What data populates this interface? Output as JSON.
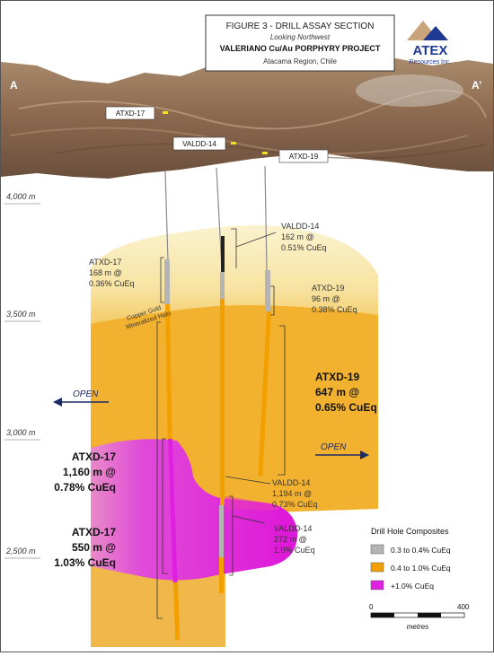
{
  "header": {
    "figure_title": "FIGURE 3 - DRILL ASSAY SECTION",
    "view": "Looking Northwest",
    "project": "VALERIANO Cu/Au PORPHYRY PROJECT",
    "region": "Atacama Region, Chile"
  },
  "logo": {
    "name": "ATEX",
    "tagline": "Resources Inc.",
    "color": "#1f3a93"
  },
  "section": {
    "start_label": "A",
    "end_label": "A’"
  },
  "collars": [
    {
      "label": "ATXD-17"
    },
    {
      "label": "VALDD-14"
    },
    {
      "label": "ATXD-19"
    }
  ],
  "elevations": [
    {
      "label": "4,000 m"
    },
    {
      "label": "3,500 m"
    },
    {
      "label": "3,000 m"
    },
    {
      "label": "2,500 m"
    }
  ],
  "halo_label": {
    "line1": "Copper Gold",
    "line2": "Mineralized Halo"
  },
  "open_labels": {
    "left": "OPEN",
    "right": "OPEN"
  },
  "intercepts": [
    {
      "hole": "VALDD-14",
      "result1": "162 m @",
      "result2": "0.51% CuEq"
    },
    {
      "hole": "ATXD-17",
      "result1": "168 m @",
      "result2": "0.36% CuEq"
    },
    {
      "hole": "ATXD-19",
      "result1": "96 m @",
      "result2": "0.38% CuEq"
    },
    {
      "hole": "ATXD-19",
      "result1": "647 m @",
      "result2": "0.65% CuEq"
    },
    {
      "hole": "ATXD-17",
      "result1": "1,160 m @",
      "result2": "0.78% CuEq"
    },
    {
      "hole": "VALDD-14",
      "result1": "1,194 m @",
      "result2": "0.73% CuEq"
    },
    {
      "hole": "VALDD-14",
      "result1": "272 m @",
      "result2": "1.0% CuEq"
    },
    {
      "hole": "ATXD-17",
      "result1": "550 m @",
      "result2": "1.03% CuEq"
    }
  ],
  "legend": {
    "title": "Drill Hole Composites",
    "items": [
      {
        "label": "0.3 to 0.4% CuEq",
        "color": "#b4b4b4"
      },
      {
        "label": "0.4 to 1.0% CuEq",
        "color": "#f2a000"
      },
      {
        "label": "+1.0% CuEq",
        "color": "#e020e0"
      }
    ]
  },
  "scale_bar": {
    "min_label": "0",
    "max_label": "400",
    "unit": "metres"
  },
  "colors": {
    "halo_light": "#f7eab0",
    "halo_mid": "#f8d47a",
    "zone_orange": "#f2b230",
    "zone_magenta": "#e01ed2",
    "arrow": "#1c2a66"
  }
}
